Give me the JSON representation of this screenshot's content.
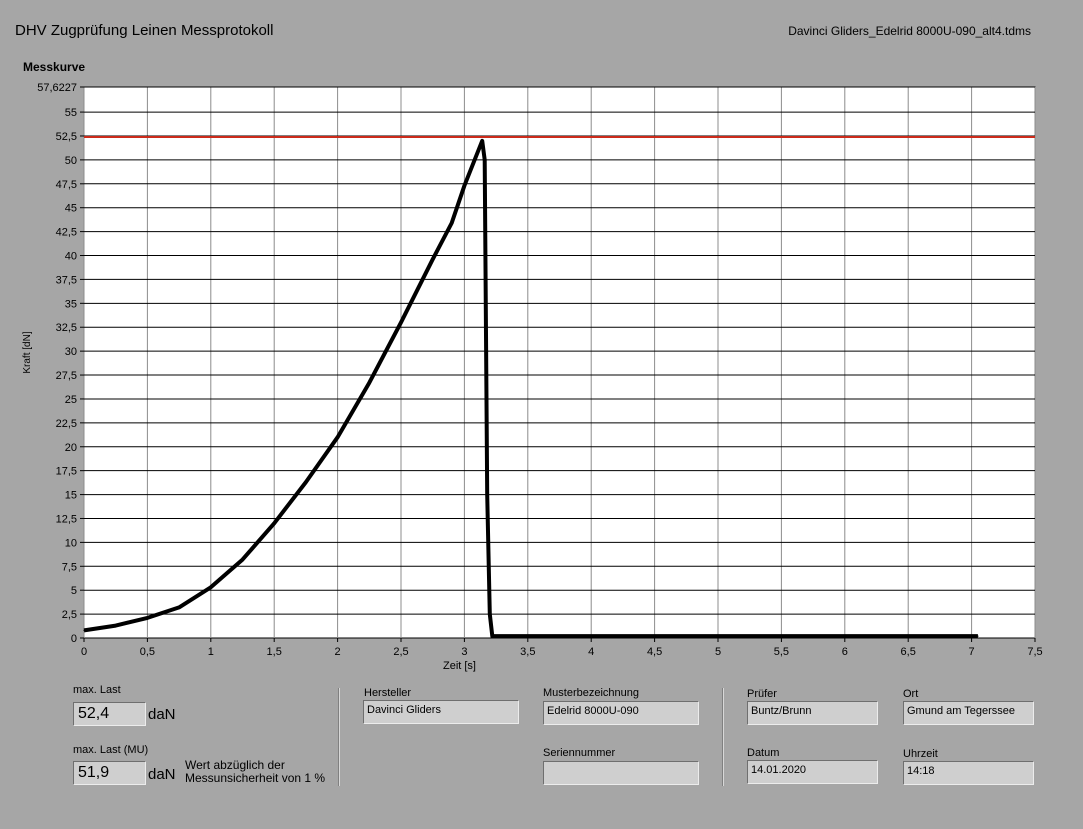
{
  "header": {
    "title": "DHV Zugprüfung Leinen Messprotokoll",
    "filename": "Davinci Gliders_Edelrid 8000U-090_alt4.tdms"
  },
  "chart_data": {
    "type": "line",
    "title": "Messkurve",
    "xlabel": "Zeit [s]",
    "ylabel": "Kraft [dN]",
    "xlim": [
      0,
      7.5
    ],
    "ylim": [
      0,
      57.6227
    ],
    "x_ticks": [
      "0",
      "0,5",
      "1",
      "1,5",
      "2",
      "2,5",
      "3",
      "3,5",
      "4",
      "4,5",
      "5",
      "5,5",
      "6",
      "6,5",
      "7",
      "7,5"
    ],
    "y_ticks": [
      "0",
      "2,5",
      "5",
      "7,5",
      "10",
      "12,5",
      "15",
      "17,5",
      "20",
      "22,5",
      "25",
      "27,5",
      "30",
      "32,5",
      "35",
      "37,5",
      "40",
      "42,5",
      "45",
      "47,5",
      "50",
      "52,5",
      "55",
      "57,6227"
    ],
    "grid": true,
    "reference_line": {
      "y": 52.4,
      "color": "#cc2a1a"
    },
    "series": [
      {
        "color": "#000000",
        "points": [
          [
            0,
            0.8
          ],
          [
            0.25,
            1.3
          ],
          [
            0.5,
            2.1
          ],
          [
            0.75,
            3.2
          ],
          [
            1.0,
            5.3
          ],
          [
            1.25,
            8.2
          ],
          [
            1.5,
            12.0
          ],
          [
            1.75,
            16.3
          ],
          [
            2.0,
            21.0
          ],
          [
            2.25,
            26.7
          ],
          [
            2.5,
            33.0
          ],
          [
            2.75,
            39.6
          ],
          [
            2.9,
            43.4
          ],
          [
            3.0,
            47.3
          ],
          [
            3.14,
            52.0
          ],
          [
            3.16,
            50.0
          ],
          [
            3.18,
            15.0
          ],
          [
            3.2,
            2.5
          ],
          [
            3.22,
            0.2
          ],
          [
            4.0,
            0.2
          ],
          [
            5.0,
            0.2
          ],
          [
            6.0,
            0.2
          ],
          [
            7.05,
            0.2
          ]
        ]
      }
    ]
  },
  "fields": {
    "max_last": {
      "label": "max. Last",
      "value": "52,4",
      "unit": "daN"
    },
    "max_last_mu": {
      "label": "max. Last (MU)",
      "value": "51,9",
      "unit": "daN",
      "note_line1": "Wert abzüglich der",
      "note_line2": "Messunsicherheit von 1 %"
    },
    "hersteller": {
      "label": "Hersteller",
      "value": "Davinci Gliders"
    },
    "musterbezeichnung": {
      "label": "Musterbezeichnung",
      "value": "Edelrid 8000U-090"
    },
    "seriennummer": {
      "label": "Seriennummer",
      "value": ""
    },
    "pruefer": {
      "label": "Prüfer",
      "value": "Buntz/Brunn"
    },
    "ort": {
      "label": "Ort",
      "value": "Gmund am Tegerssee"
    },
    "datum": {
      "label": "Datum",
      "value": "14.01.2020"
    },
    "uhrzeit": {
      "label": "Uhrzeit",
      "value": "14:18"
    }
  }
}
